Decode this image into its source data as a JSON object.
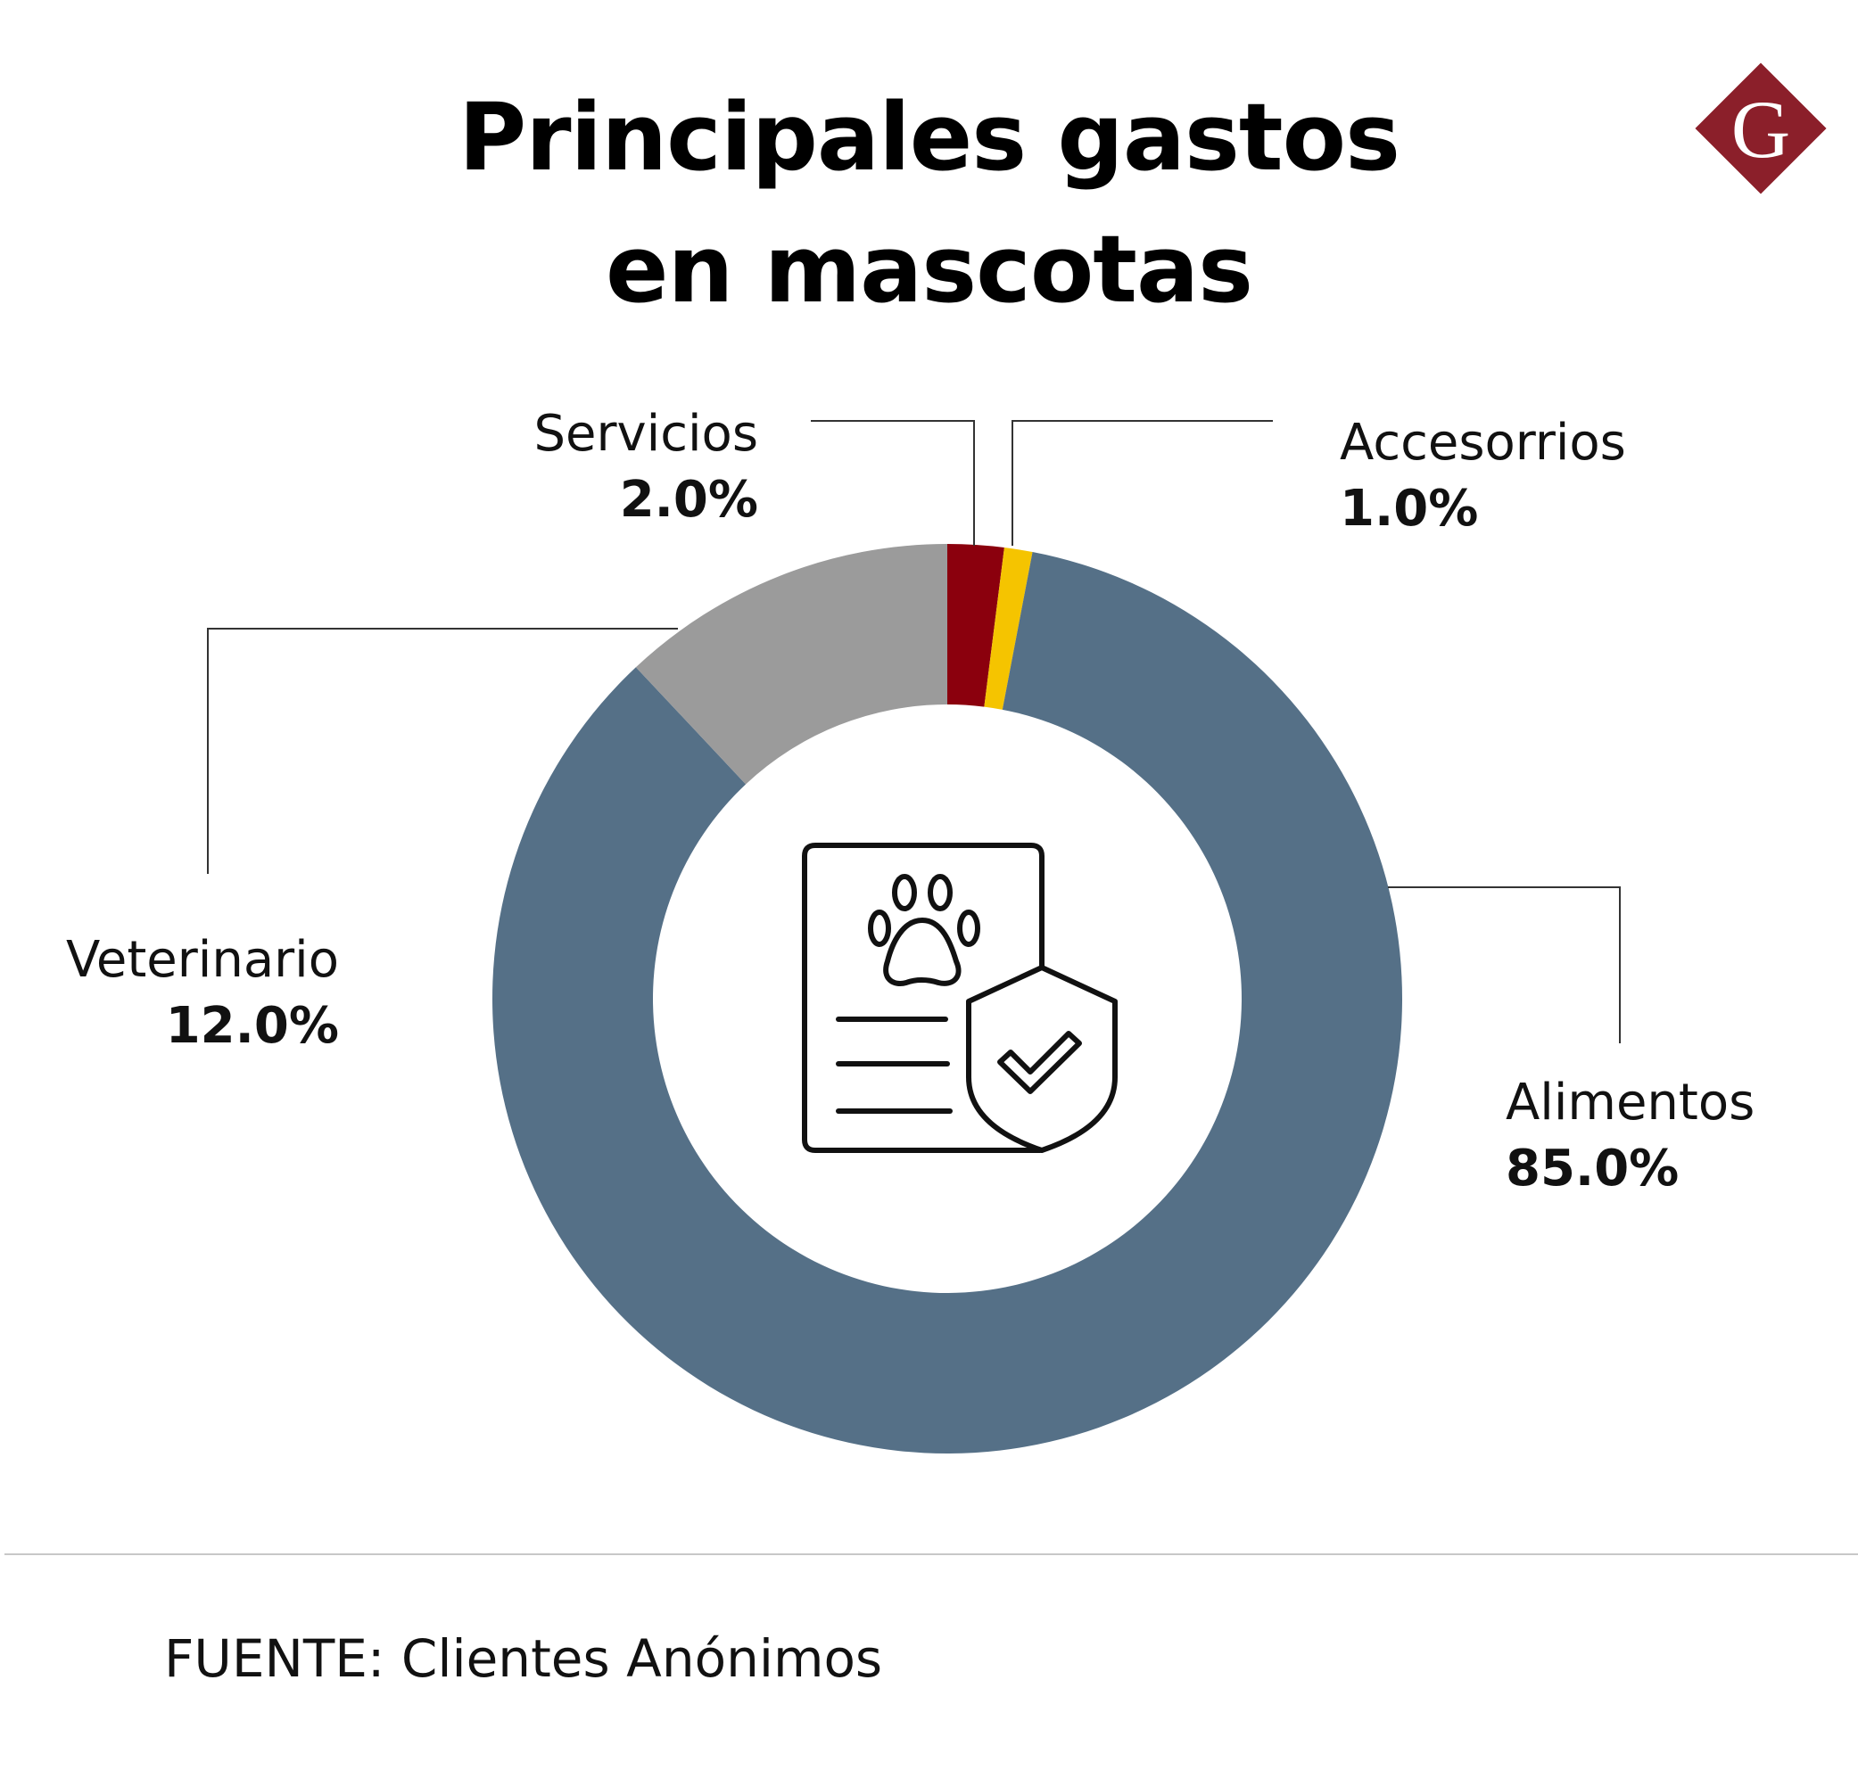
{
  "title": {
    "line1": "Principales gastos",
    "line2": "en mascotas"
  },
  "logo": {
    "letter": "G",
    "color": "#8b1f2a"
  },
  "chart_data": {
    "type": "pie",
    "variant": "donut",
    "slices": [
      {
        "label": "Servicios",
        "value": 2.0,
        "display": "2.0%",
        "color": "#8b000d"
      },
      {
        "label": "Accesorrios",
        "value": 1.0,
        "display": "1.0%",
        "color": "#f5c400"
      },
      {
        "label": "Alimentos",
        "value": 85.0,
        "display": "85.0%",
        "color": "#557087"
      },
      {
        "label": "Veterinario",
        "value": 12.0,
        "display": "12.0%",
        "color": "#9b9b9b"
      }
    ],
    "center_icon": "pet-insurance-document-icon"
  },
  "footer": {
    "source": "FUENTE: Clientes Anónimos"
  }
}
